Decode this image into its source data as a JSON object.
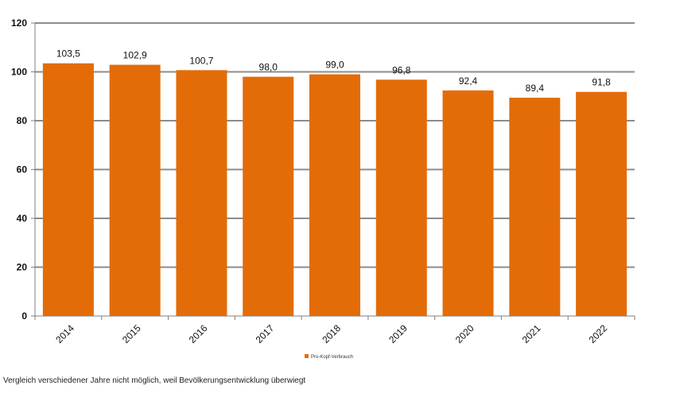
{
  "chart_data": {
    "type": "bar",
    "categories": [
      "2014",
      "2015",
      "2016",
      "2017",
      "2018",
      "2019",
      "2020",
      "2021",
      "2022"
    ],
    "series": [
      {
        "name": "Pro-Kopf-Verbrauch",
        "values": [
          103.5,
          102.9,
          100.7,
          98.0,
          99.0,
          96.8,
          92.4,
          89.4,
          91.8
        ]
      }
    ],
    "data_labels": [
      "103,5",
      "102,9",
      "100,7",
      "98,0",
      "99,0",
      "96,8",
      "92,4",
      "89,4",
      "91,8"
    ],
    "ylim": [
      0,
      120
    ],
    "yticks": [
      0,
      20,
      40,
      60,
      80,
      100,
      120
    ],
    "grid": true,
    "legend_position": "bottom-center",
    "bar_color": "#E36C09",
    "xlabel": "",
    "ylabel": "",
    "title": ""
  },
  "footnote": "Vergleich  verschiedener Jahre nicht möglich, weil Bevölkerungsentwicklung überwiegt"
}
